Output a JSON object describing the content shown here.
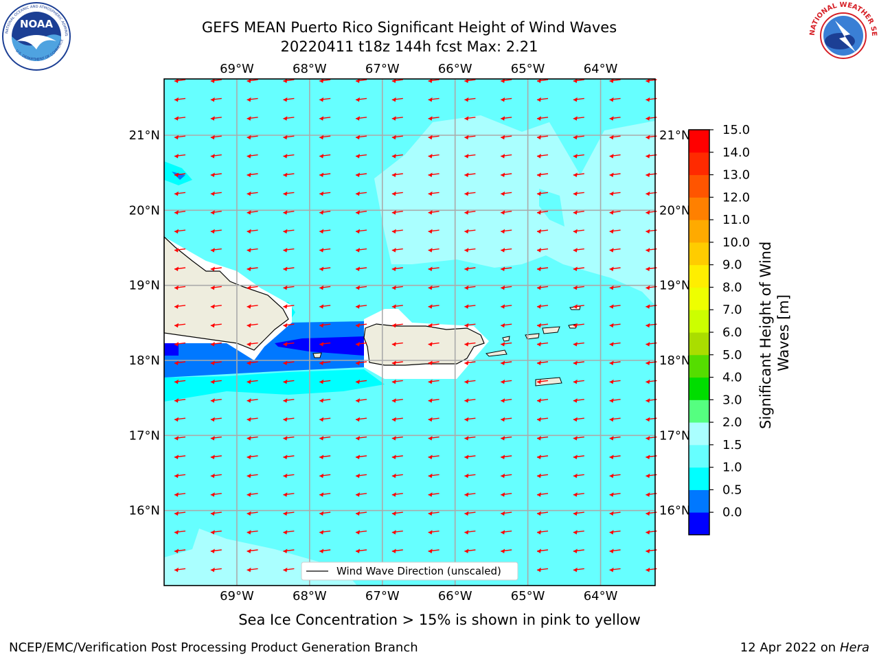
{
  "header": {
    "title_line1": "GEFS MEAN Puerto Rico Significant Height of Wind Waves",
    "title_line2": "20220411 t18z 144h fcst   Max: 2.21"
  },
  "logos": {
    "left": "noaa-logo",
    "right": "nws-logo",
    "noaa_text": "NOAA",
    "noaa_ring_text": "NATIONAL OCEANIC AND ATMOSPHERIC ADMINISTRATION",
    "noaa_ring_bottom": "U.S. DEPARTMENT OF COMMERCE",
    "nws_ring_text": "NATIONAL WEATHER SERVICE"
  },
  "map": {
    "lon_labels": [
      "69°W",
      "68°W",
      "67°W",
      "66°W",
      "65°W",
      "64°W"
    ],
    "lat_labels": [
      "21°N",
      "20°N",
      "19°N",
      "18°N",
      "17°N",
      "16°N"
    ],
    "lon_range": [
      -70.0,
      -63.25
    ],
    "lat_range": [
      15.0,
      21.75
    ],
    "background_color": "#66ffff",
    "land_color": "#eeedde",
    "arrow_color": "#ff0000",
    "arrow_direction": "westward, slightly south",
    "legend_label": "Wind Wave Direction (unscaled)"
  },
  "colorbar": {
    "label_line1": "Significant Height of Wind",
    "label_line2": "Waves [m]",
    "ticks": [
      "15.0",
      "14.0",
      "13.0",
      "12.0",
      "11.0",
      "10.0",
      "9.0",
      "8.0",
      "7.0",
      "6.0",
      "5.0",
      "4.0",
      "3.0",
      "2.0",
      "1.5",
      "1.0",
      "0.5",
      "0.0"
    ],
    "colors_bottom_to_top": [
      "#0000ff",
      "#0078ff",
      "#00ffff",
      "#66ffff",
      "#aaffff",
      "#55ff80",
      "#00dd00",
      "#55dd00",
      "#aadd00",
      "#ccff00",
      "#eeff00",
      "#ffee00",
      "#ffcc00",
      "#ffaa00",
      "#ff8000",
      "#ff5500",
      "#ff2a00",
      "#ff0000"
    ]
  },
  "footer": {
    "note": "Sea Ice Concentration > 15% is shown in pink to yellow",
    "credit": "NCEP/EMC/Verification Post Processing Product Generation Branch",
    "date_prefix": "12 Apr 2022 on ",
    "date_machine": "Hera"
  }
}
